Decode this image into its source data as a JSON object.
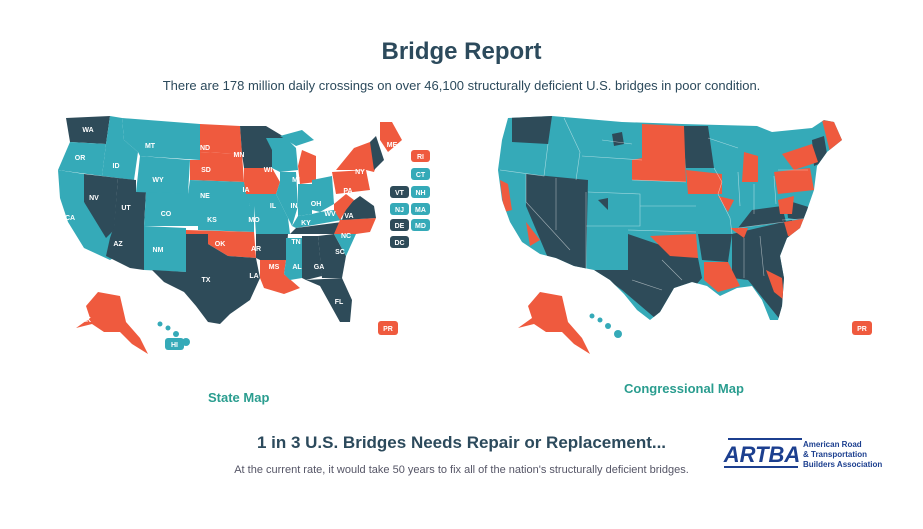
{
  "header": {
    "title": "Bridge Report",
    "subtitle": "There are 178 million daily crossings on over 46,100 structurally deficient U.S. bridges in poor condition."
  },
  "colors": {
    "teal": "#35aab8",
    "dark": "#2e4b59",
    "red": "#ef5a3e",
    "label_green": "#2a9d8f"
  },
  "state_map": {
    "label": "State Map",
    "states": {
      "WA": "WA",
      "OR": "OR",
      "CA": "CA",
      "ID": "ID",
      "NV": "NV",
      "AZ": "AZ",
      "UT": "UT",
      "MT": "MT",
      "WY": "WY",
      "CO": "CO",
      "NM": "NM",
      "ND": "ND",
      "SD": "SD",
      "NE": "NE",
      "KS": "KS",
      "OK": "OK",
      "TX": "TX",
      "MN": "MN",
      "IA": "IA",
      "MO": "MO",
      "AR": "AR",
      "LA": "LA",
      "WI": "WI",
      "IL": "IL",
      "MI": "MI",
      "IN": "IN",
      "OH": "OH",
      "KY": "KY",
      "TN": "TN",
      "MS": "MS",
      "AL": "AL",
      "GA": "GA",
      "FL": "FL",
      "SC": "SC",
      "NC": "NC",
      "VA": "VA",
      "WV": "WV",
      "PA": "PA",
      "NY": "NY",
      "ME": "ME",
      "AK": "AK",
      "HI": "HI"
    },
    "small_states": {
      "RI": "RI",
      "CT": "CT",
      "NH": "NH",
      "VT": "VT",
      "NJ": "NJ",
      "MA": "MA",
      "DE": "DE",
      "MD": "MD",
      "DC": "DC"
    },
    "pr": "PR"
  },
  "congressional_map": {
    "label": "Congressional Map",
    "pr": "PR"
  },
  "footer": {
    "headline": "1 in 3 U.S. Bridges Needs Repair or Replacement...",
    "note": "At the current rate, it would take 50 years to fix all of the nation's structurally deficient bridges."
  },
  "logo": {
    "mark": "ARTBA",
    "line1": "American Road",
    "line2": "& Transportation",
    "line3": "Builders Association"
  }
}
